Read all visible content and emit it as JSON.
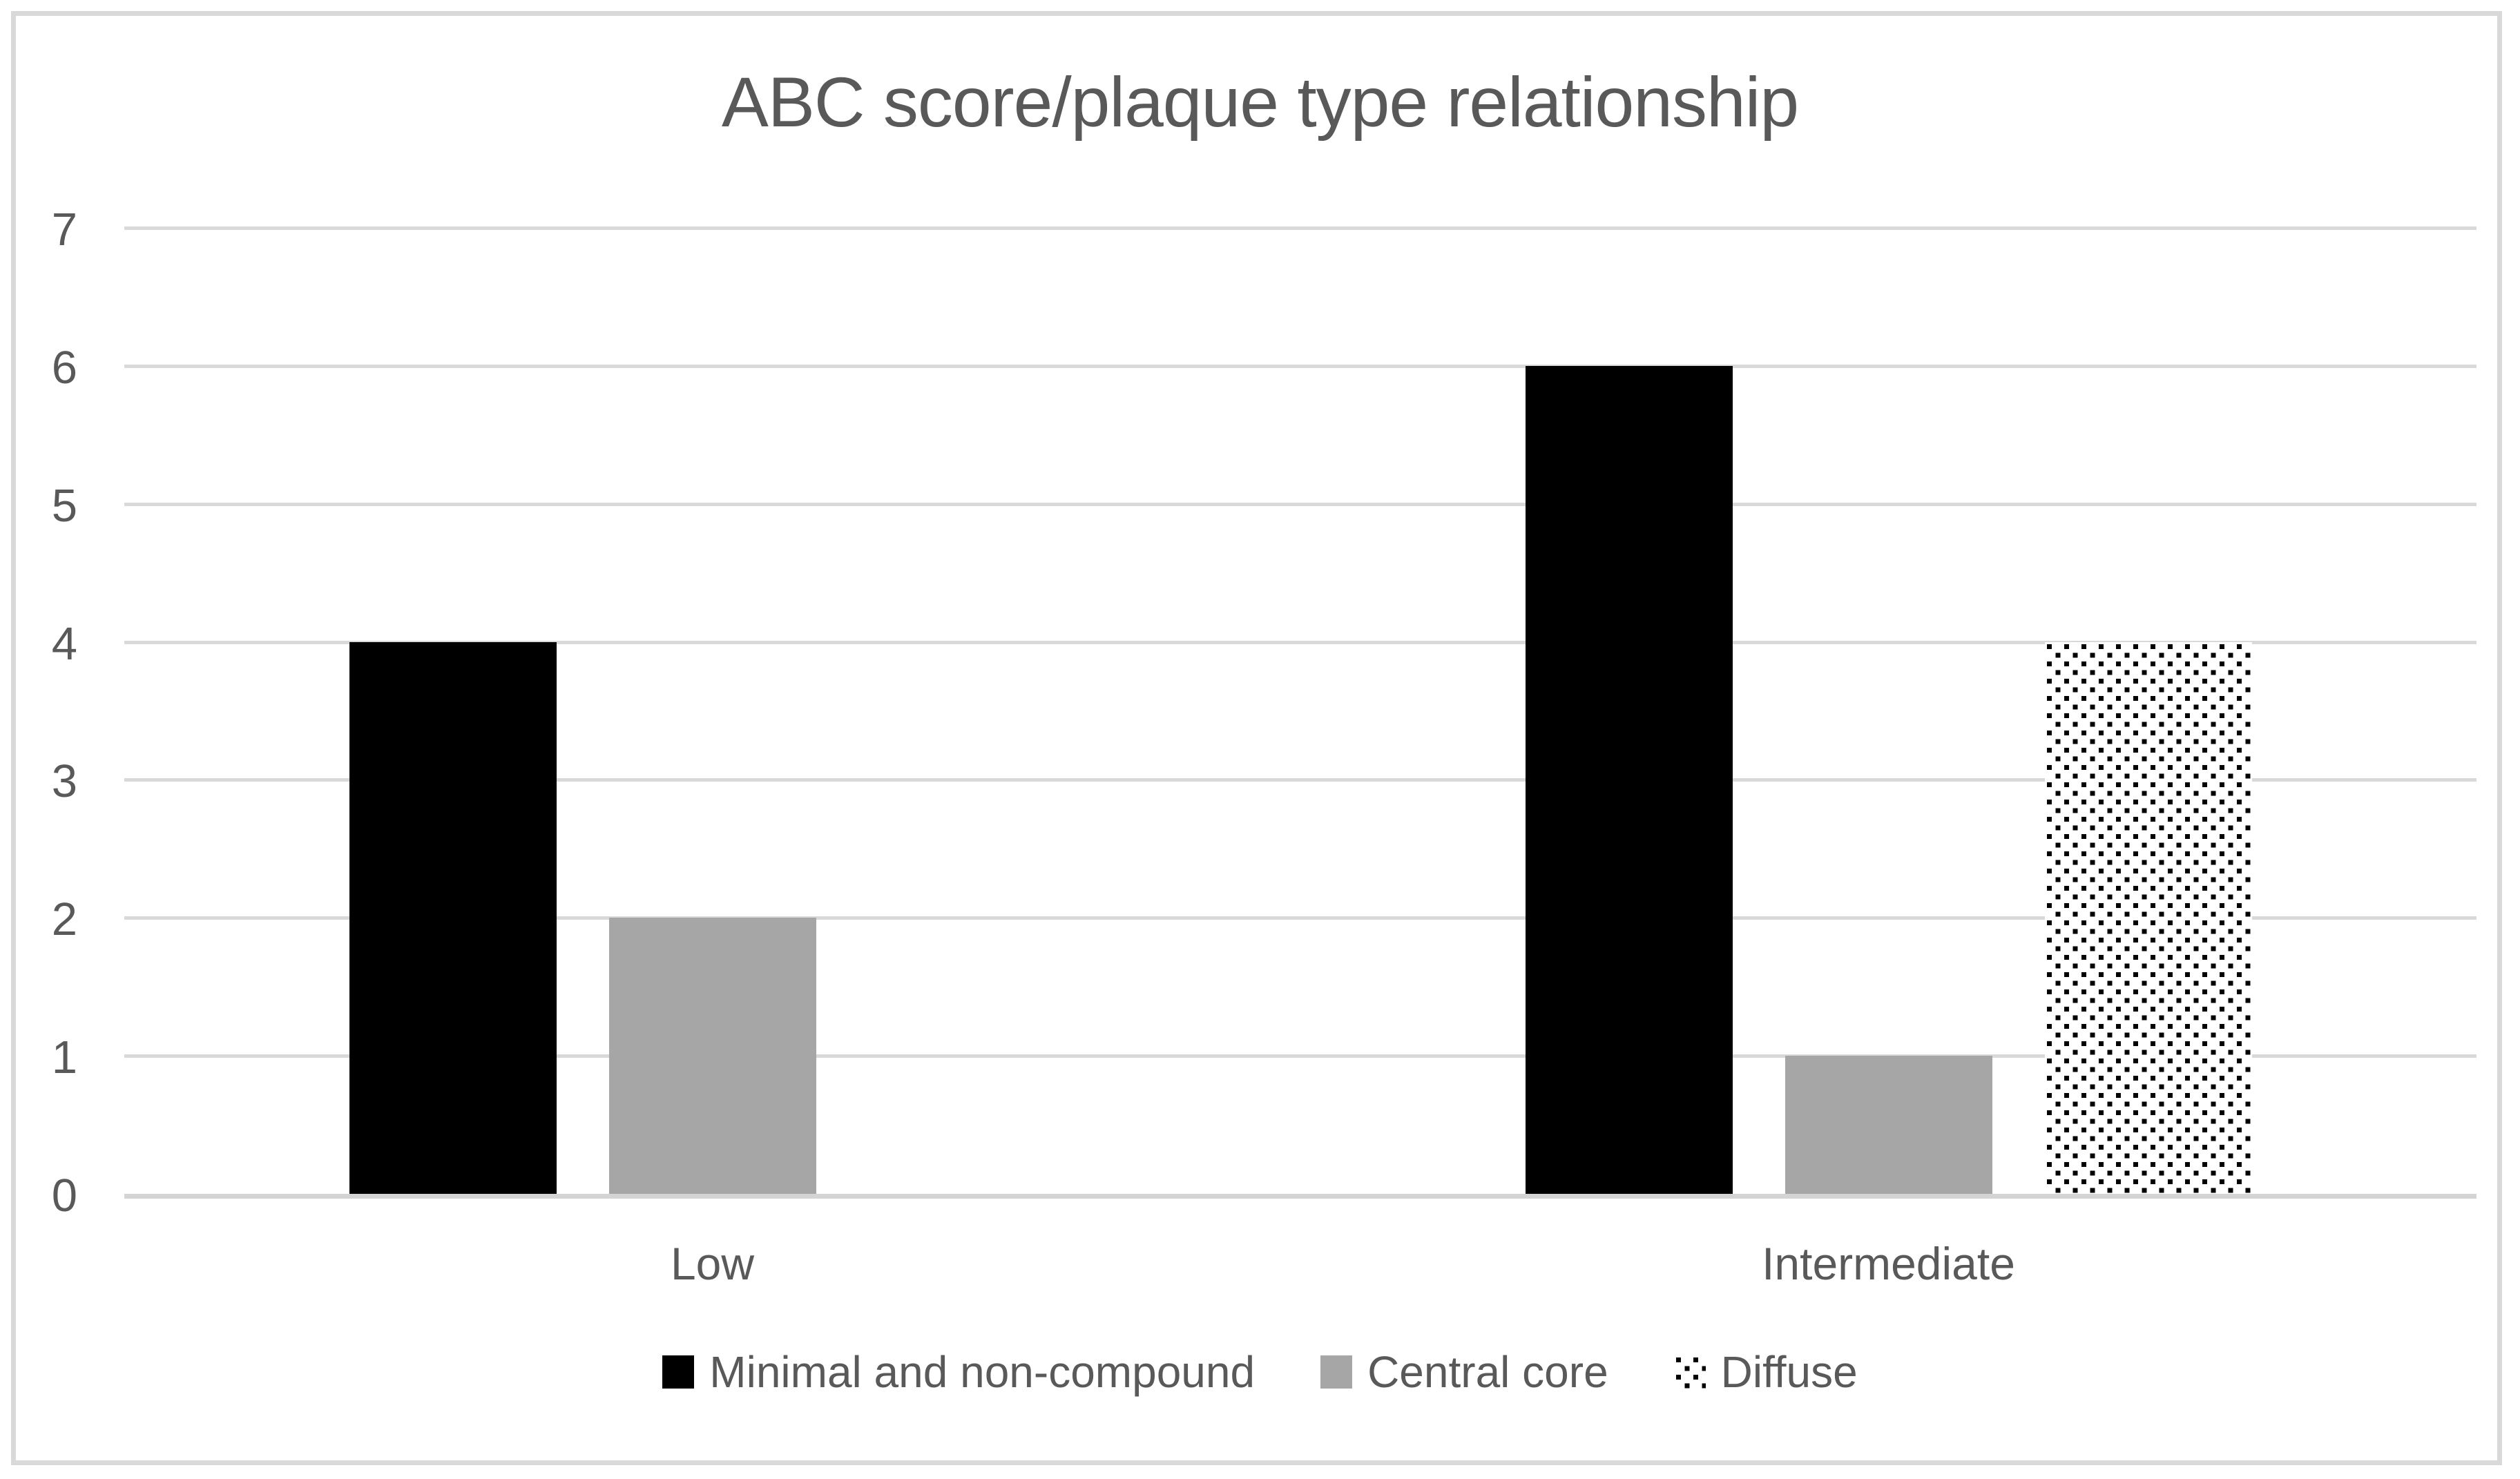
{
  "title": "ABC score/plaque type relationship",
  "colors": {
    "background": "#FFFFFF",
    "frame_border": "#D9D9D9",
    "gridline": "#D9D9D9",
    "axis_line": "#D4D4D4",
    "text": "#595959",
    "bar_black": "#000000",
    "bar_gray": "#A6A6A6",
    "pattern_dot": "#000000",
    "pattern_bg": "#FFFFFF"
  },
  "chart_data": {
    "type": "bar",
    "title": "ABC score/plaque type relationship",
    "categories": [
      "Low",
      "Intermediate"
    ],
    "series": [
      {
        "name": "Minimal and non-compound",
        "values": [
          4,
          6
        ],
        "fill": "#000000",
        "pattern": "solid"
      },
      {
        "name": "Central core",
        "values": [
          2,
          1
        ],
        "fill": "#A6A6A6",
        "pattern": "solid"
      },
      {
        "name": "Diffuse",
        "values": [
          0,
          4
        ],
        "fill": "#FFFFFF",
        "pattern": "dots"
      }
    ],
    "xlabel": "",
    "ylabel": "",
    "ylim": [
      0,
      7
    ],
    "yticks": [
      0,
      1,
      2,
      3,
      4,
      5,
      6,
      7
    ],
    "grid": true,
    "legend_position": "bottom"
  }
}
